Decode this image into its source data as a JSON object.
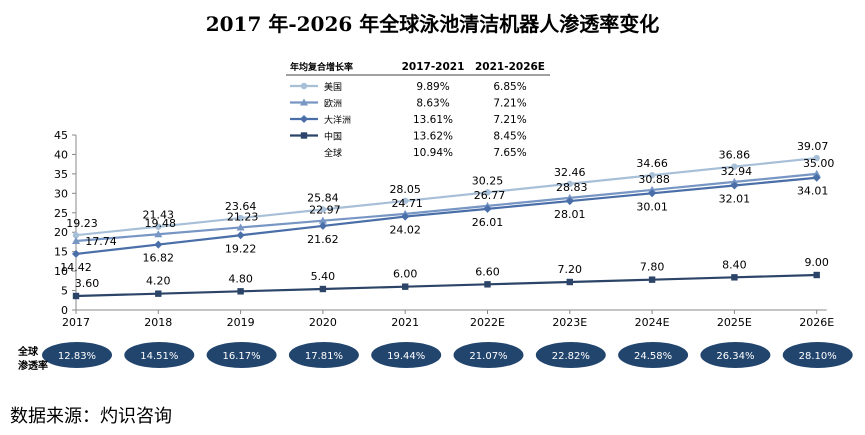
{
  "page": {
    "title": "2017 年-2026 年全球泳池清洁机器人渗透率变化",
    "source": "数据来源：灼识咨询"
  },
  "penetration_label": [
    "全球",
    "渗透率"
  ],
  "legend": {
    "header": "年均复合增长率",
    "col1": "2017-2021",
    "col2": "2021-2026E",
    "rows": [
      {
        "name": "美国",
        "c1": "9.89%",
        "c2": "6.85%",
        "color": "#a8bfd8",
        "marker": "circle"
      },
      {
        "name": "欧洲",
        "c1": "8.63%",
        "c2": "7.21%",
        "color": "#7796c4",
        "marker": "triangle"
      },
      {
        "name": "大洋洲",
        "c1": "13.61%",
        "c2": "7.21%",
        "color": "#4a6ea8",
        "marker": "diamond"
      },
      {
        "name": "中国",
        "c1": "13.62%",
        "c2": "8.45%",
        "color": "#2b4468",
        "marker": "square"
      },
      {
        "name": "全球",
        "c1": "10.94%",
        "c2": "7.65%",
        "color": "",
        "marker": "none"
      }
    ]
  },
  "chart_data": {
    "type": "line",
    "title": "2017 年-2026 年全球泳池清洁机器人渗透率变化",
    "categories": [
      "2017",
      "2018",
      "2019",
      "2020",
      "2021",
      "2022E",
      "2023E",
      "2024E",
      "2025E",
      "2026E"
    ],
    "ylim": [
      0,
      45
    ],
    "yticks": [
      0,
      5,
      10,
      15,
      20,
      25,
      30,
      35,
      40,
      45
    ],
    "grid": false,
    "series": [
      {
        "name": "美国",
        "color": "#a8bfd8",
        "marker": "circle",
        "values": [
          19.23,
          21.43,
          23.64,
          25.84,
          28.05,
          30.25,
          32.46,
          34.66,
          36.86,
          39.07
        ]
      },
      {
        "name": "欧洲",
        "color": "#7796c4",
        "marker": "triangle",
        "values": [
          17.74,
          19.48,
          21.23,
          22.97,
          24.71,
          26.77,
          28.83,
          30.88,
          32.94,
          35.0
        ]
      },
      {
        "name": "大洋洲",
        "color": "#4a6ea8",
        "marker": "diamond",
        "values": [
          14.42,
          16.82,
          19.22,
          21.62,
          24.02,
          26.01,
          28.01,
          30.01,
          32.01,
          34.01
        ]
      },
      {
        "name": "中国",
        "color": "#2b4468",
        "marker": "square",
        "values": [
          3.6,
          4.2,
          4.8,
          5.4,
          6.0,
          6.6,
          7.2,
          7.8,
          8.4,
          9.0
        ]
      }
    ],
    "global_penetration": [
      "12.83%",
      "14.51%",
      "16.17%",
      "17.81%",
      "19.44%",
      "21.07%",
      "22.82%",
      "24.58%",
      "26.34%",
      "28.10%"
    ]
  },
  "colors": {
    "axis": "#888888",
    "bubble": "#22456e",
    "bubble_text": "#ffffff"
  }
}
